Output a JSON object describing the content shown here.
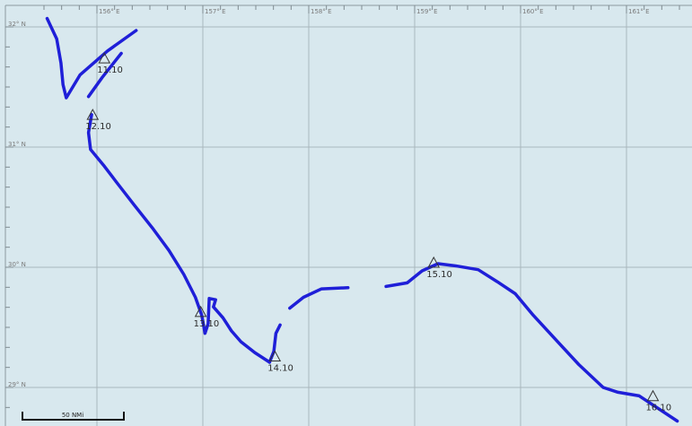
{
  "map": {
    "background_color": "#d8e8ee",
    "grid_color": "#a9b7bd",
    "track_color": "#1f1fd8",
    "lon_labels": [
      "156° E",
      "157° E",
      "158° E",
      "159° E",
      "160° E",
      "161° E"
    ],
    "lat_labels": [
      "32° N",
      "31° N",
      "30° N",
      "29° N"
    ],
    "waypoints": [
      {
        "label": "11.10",
        "lon": 156.07,
        "lat": 31.73
      },
      {
        "label": "12.10",
        "lon": 155.96,
        "lat": 31.26
      },
      {
        "label": "13.10",
        "lon": 156.98,
        "lat": 29.62
      },
      {
        "label": "14.10",
        "lon": 157.68,
        "lat": 29.25
      },
      {
        "label": "15.10",
        "lon": 159.18,
        "lat": 30.03
      },
      {
        "label": "16.10",
        "lon": 161.25,
        "lat": 28.92
      }
    ],
    "track_segments": [
      [
        [
          155.53,
          32.07
        ],
        [
          155.62,
          31.9
        ],
        [
          155.66,
          31.7
        ],
        [
          155.68,
          31.52
        ],
        [
          155.71,
          31.41
        ],
        [
          155.84,
          31.6
        ],
        [
          156.1,
          31.8
        ],
        [
          156.37,
          31.97
        ]
      ],
      [
        [
          155.92,
          31.42
        ],
        [
          156.05,
          31.58
        ],
        [
          156.23,
          31.78
        ]
      ],
      [
        [
          155.95,
          31.27
        ],
        [
          155.92,
          31.12
        ],
        [
          155.94,
          30.98
        ],
        [
          156.07,
          30.84
        ],
        [
          156.2,
          30.69
        ],
        [
          156.35,
          30.52
        ],
        [
          156.53,
          30.32
        ],
        [
          156.68,
          30.14
        ],
        [
          156.82,
          29.94
        ],
        [
          156.93,
          29.75
        ],
        [
          156.99,
          29.6
        ],
        [
          157.02,
          29.45
        ],
        [
          157.05,
          29.53
        ],
        [
          157.06,
          29.74
        ],
        [
          157.12,
          29.73
        ],
        [
          157.1,
          29.67
        ],
        [
          157.19,
          29.58
        ],
        [
          157.27,
          29.47
        ],
        [
          157.36,
          29.38
        ],
        [
          157.49,
          29.29
        ],
        [
          157.63,
          29.21
        ]
      ],
      [
        [
          157.63,
          29.21
        ],
        [
          157.67,
          29.3
        ],
        [
          157.69,
          29.45
        ],
        [
          157.73,
          29.52
        ]
      ],
      [
        [
          157.82,
          29.66
        ],
        [
          157.95,
          29.75
        ],
        [
          158.12,
          29.82
        ],
        [
          158.37,
          29.83
        ]
      ],
      [
        [
          158.73,
          29.84
        ],
        [
          158.93,
          29.87
        ],
        [
          159.07,
          29.97
        ],
        [
          159.22,
          30.03
        ],
        [
          159.4,
          30.01
        ],
        [
          159.6,
          29.98
        ],
        [
          159.78,
          29.88
        ],
        [
          159.95,
          29.78
        ],
        [
          160.12,
          29.6
        ],
        [
          160.34,
          29.39
        ],
        [
          160.55,
          29.19
        ],
        [
          160.78,
          29.0
        ],
        [
          160.92,
          28.96
        ],
        [
          161.12,
          28.93
        ],
        [
          161.48,
          28.72
        ]
      ]
    ],
    "scale_bar": {
      "label": "50 NMi"
    }
  }
}
